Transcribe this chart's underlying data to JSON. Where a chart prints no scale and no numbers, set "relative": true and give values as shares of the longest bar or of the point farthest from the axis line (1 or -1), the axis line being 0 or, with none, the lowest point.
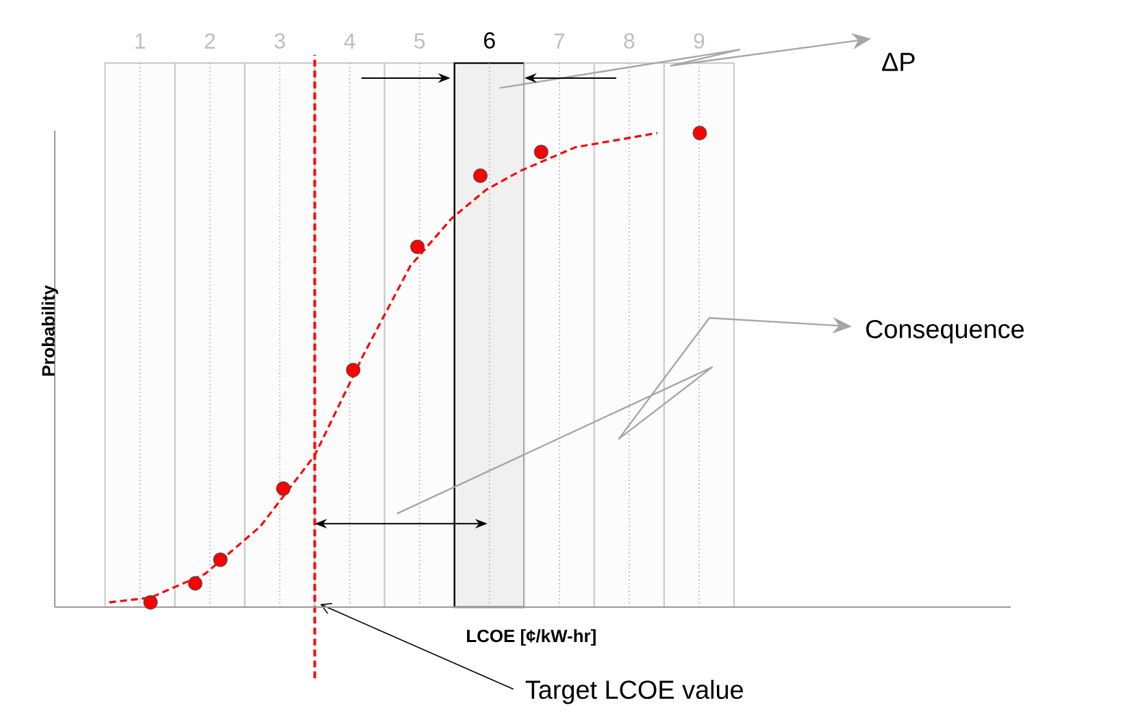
{
  "chart_data": {
    "type": "scatter",
    "xlabel": "LCOE [¢/kW-hr]",
    "ylabel": "Probability",
    "relative": true,
    "xlim": [
      -0.22,
      13.46
    ],
    "xticks": [
      1,
      2,
      3,
      4,
      5,
      6,
      7,
      8,
      9
    ],
    "grid": "x",
    "tick_labels": "x",
    "series": [
      {
        "color": "#ff0000",
        "marker": "circle",
        "x": [
          1.15,
          1.79,
          2.15,
          3.05,
          4.05,
          4.97,
          5.87,
          6.74,
          9.01
        ],
        "values": [
          0.01,
          0.05,
          0.1,
          0.25,
          0.5,
          0.76,
          0.91,
          0.96,
          1.0
        ]
      },
      {
        "type": "line",
        "color": "#ff0000",
        "line_style": "dashed",
        "marker": "none",
        "x": [
          0.56,
          1.15,
          1.93,
          2.72,
          3.5,
          4.19,
          4.87,
          5.46,
          5.95,
          6.44,
          7.23,
          8.4
        ],
        "values": [
          0.01,
          0.02,
          0.07,
          0.17,
          0.32,
          0.53,
          0.72,
          0.82,
          0.88,
          0.92,
          0.97,
          1.0
        ]
      }
    ],
    "ref_lines": [
      {
        "axis": "x",
        "value": 3.5,
        "label": "Target LCOE value",
        "color": "#ff0000",
        "line_style": "dashed"
      }
    ],
    "bands": [
      {
        "axis": "x",
        "from": 0.5,
        "to": 1.5,
        "color": "#c8c8c8"
      },
      {
        "axis": "x",
        "from": 1.5,
        "to": 2.5,
        "color": "#c8c8c8"
      },
      {
        "axis": "x",
        "from": 2.5,
        "to": 3.5,
        "color": "#c8c8c8"
      },
      {
        "axis": "x",
        "from": 3.5,
        "to": 4.5,
        "color": "#c8c8c8"
      },
      {
        "axis": "x",
        "from": 4.5,
        "to": 5.5,
        "color": "#c8c8c8"
      },
      {
        "axis": "x",
        "from": 5.5,
        "to": 6.5,
        "color": "#000000"
      },
      {
        "axis": "x",
        "from": 6.5,
        "to": 7.5,
        "color": "#c8c8c8"
      },
      {
        "axis": "x",
        "from": 7.5,
        "to": 8.5,
        "color": "#c8c8c8"
      },
      {
        "axis": "x",
        "from": 8.5,
        "to": 9.5,
        "color": "#c8c8c8"
      }
    ],
    "annotations": [
      "ΔP",
      "Consequence"
    ]
  }
}
